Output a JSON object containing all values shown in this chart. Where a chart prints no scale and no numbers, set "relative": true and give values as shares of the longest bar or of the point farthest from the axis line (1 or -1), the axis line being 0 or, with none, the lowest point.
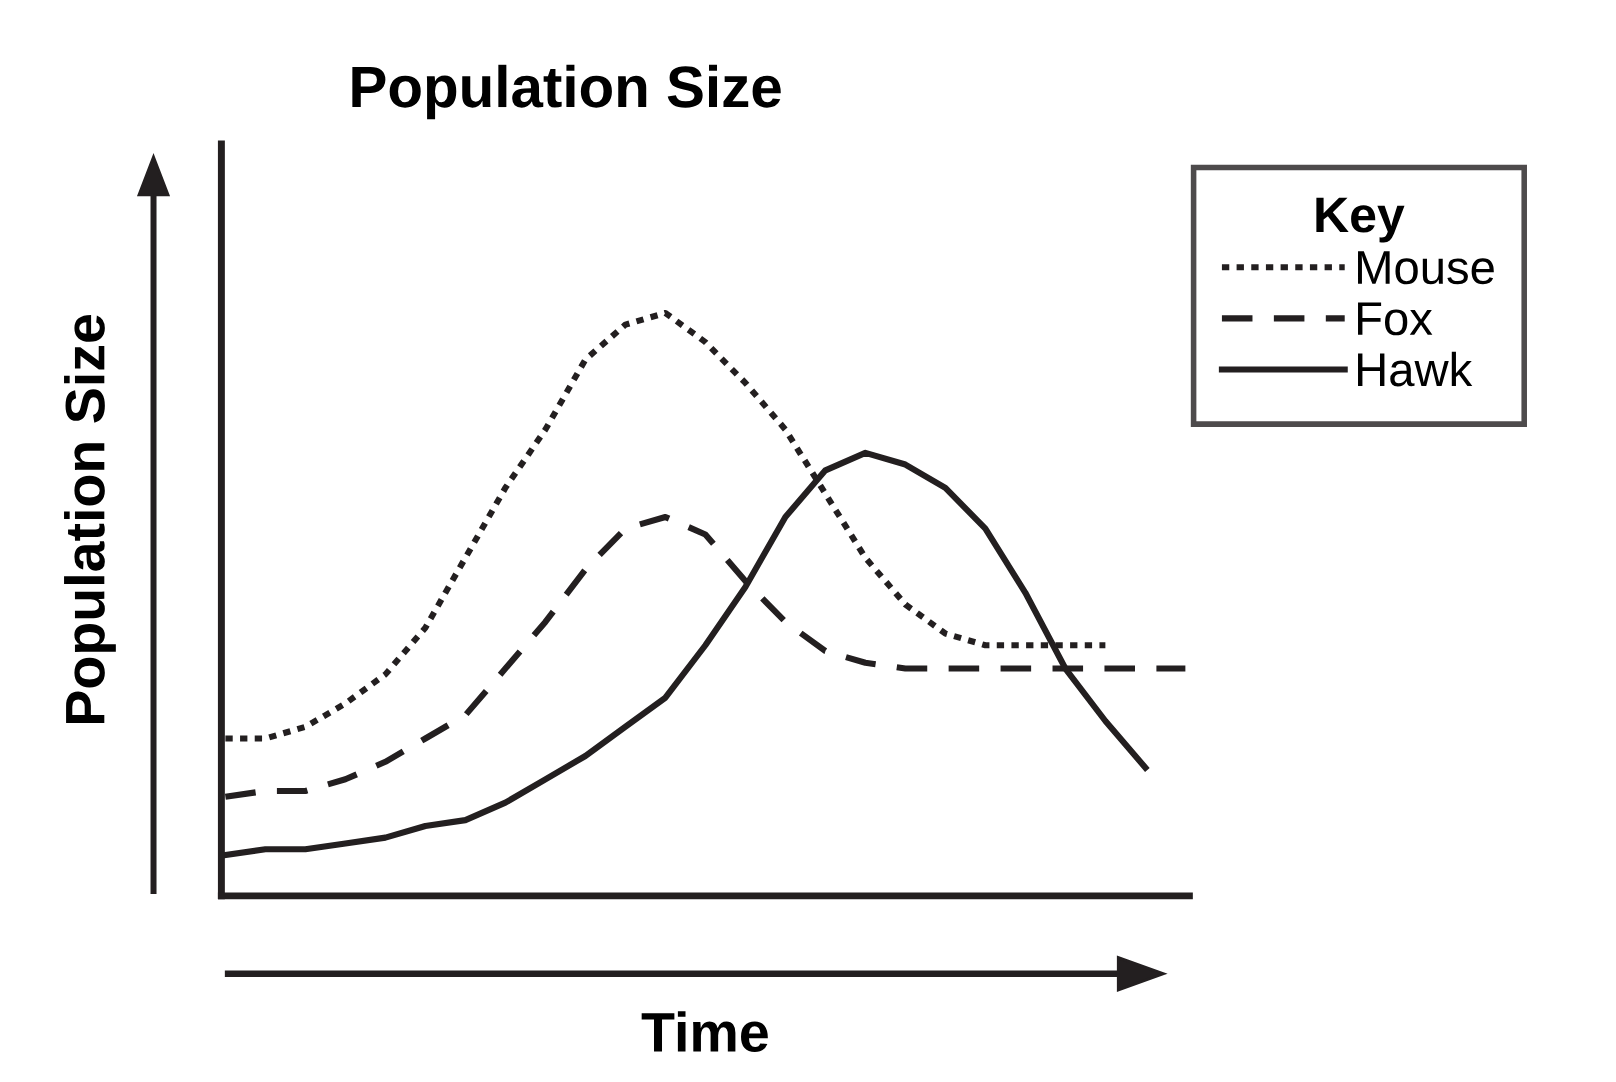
{
  "chart_data": {
    "type": "line",
    "title": "Population Size",
    "xlabel": "Time",
    "ylabel": "Population Size",
    "legend_title": "Key",
    "legend": "top right",
    "relative": true,
    "grid": false,
    "marker": "none",
    "categories": [
      null,
      null,
      null,
      null,
      null,
      null,
      null,
      null,
      null,
      null,
      null,
      null,
      null,
      null,
      null,
      null,
      null,
      null,
      null,
      null,
      null,
      null,
      null,
      null,
      null
    ],
    "series": [
      {
        "name": "Mouse",
        "color": "#231f20",
        "line_style": "dotted",
        "values": [
          0.27,
          0.27,
          0.29,
          0.33,
          0.38,
          0.46,
          0.58,
          0.7,
          0.8,
          0.92,
          0.98,
          1.0,
          0.95,
          0.88,
          0.8,
          0.69,
          0.58,
          0.5,
          0.45,
          0.43,
          0.43,
          0.43,
          0.43,
          null,
          null
        ]
      },
      {
        "name": "Fox",
        "color": "#231f20",
        "line_style": "dashed",
        "values": [
          0.17,
          0.18,
          0.18,
          0.2,
          0.23,
          0.27,
          0.31,
          0.39,
          0.47,
          0.56,
          0.63,
          0.65,
          0.62,
          0.54,
          0.47,
          0.42,
          0.4,
          0.39,
          0.39,
          0.39,
          0.39,
          0.39,
          0.39,
          0.39,
          0.39
        ]
      },
      {
        "name": "Hawk",
        "color": "#231f20",
        "line_style": "solid",
        "values": [
          0.07,
          0.08,
          0.08,
          0.09,
          0.1,
          0.12,
          0.13,
          0.16,
          0.2,
          0.24,
          0.29,
          0.34,
          0.43,
          0.53,
          0.65,
          0.73,
          0.76,
          0.74,
          0.7,
          0.63,
          0.52,
          0.39,
          0.3,
          0.22,
          null
        ]
      }
    ]
  }
}
